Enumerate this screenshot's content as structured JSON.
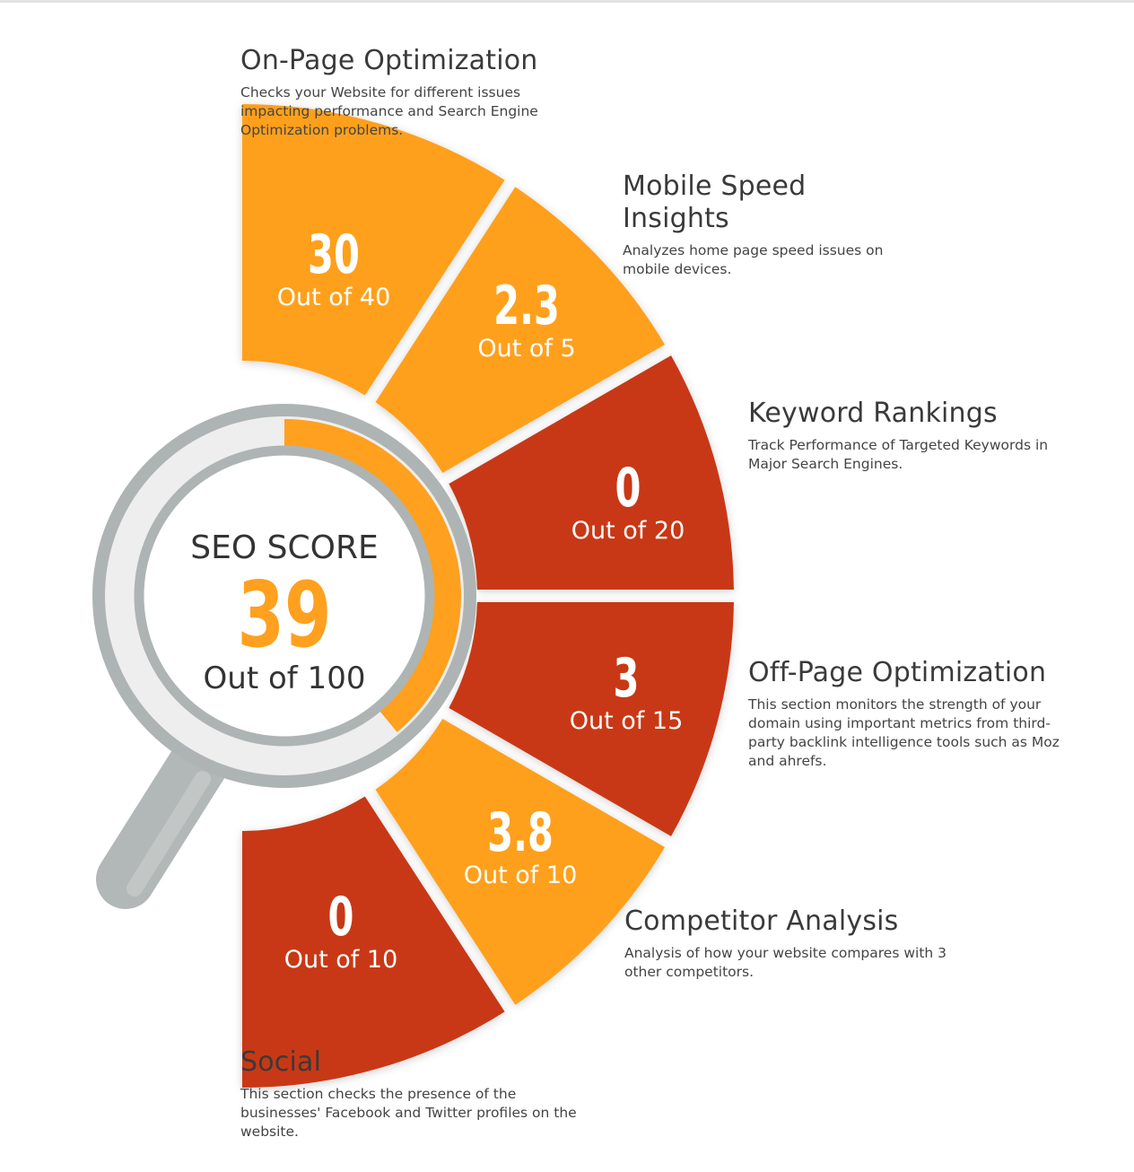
{
  "score": {
    "label": "SEO SCORE",
    "value": "39",
    "out_of": "Out of 100",
    "fraction": 0.39
  },
  "colors": {
    "orange": "#FFA01F",
    "red": "#C83714",
    "ring_gray": "#AEB4B3",
    "lens_fill": "#EEEEEE",
    "handle": "#B2B8B7"
  },
  "sections": [
    {
      "title": "On-Page Optimization",
      "desc": "Checks your Website for different issues impacting performance and Search Engine Optimization problems.",
      "value": "30",
      "out_of": "Out of 40",
      "color": "orange"
    },
    {
      "title": "Mobile Speed Insights",
      "desc": "Analyzes home page speed issues on mobile devices.",
      "value": "2.3",
      "out_of": "Out of 5",
      "color": "orange"
    },
    {
      "title": "Keyword Rankings",
      "desc": "Track Performance of Targeted Keywords in Major Search Engines.",
      "value": "0",
      "out_of": "Out of 20",
      "color": "red"
    },
    {
      "title": "Off-Page Optimization",
      "desc": "This section monitors the strength of your domain using important metrics from third-party backlink intelligence tools such as Moz and ahrefs.",
      "value": "3",
      "out_of": "Out of 15",
      "color": "red"
    },
    {
      "title": "Competitor Analysis",
      "desc": "Analysis of how your website compares with 3 other competitors.",
      "value": "3.8",
      "out_of": "Out of 10",
      "color": "orange"
    },
    {
      "title": "Social",
      "desc": "This section checks the presence of the businesses' Facebook and Twitter profiles on the website.",
      "value": "0",
      "out_of": "Out of 10",
      "color": "red"
    }
  ]
}
